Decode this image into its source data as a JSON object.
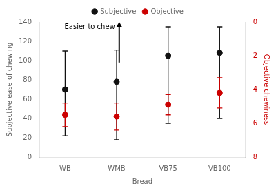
{
  "chart_data": {
    "type": "scatter",
    "categories": [
      "WB",
      "WMB",
      "VB75",
      "VB100"
    ],
    "xlabel": "Bread",
    "ylabel": "Subjective ease of chewing",
    "y2label": "Objective chewiness",
    "ylim": [
      0,
      140
    ],
    "yticks": [
      0,
      20,
      40,
      60,
      80,
      100,
      120,
      140
    ],
    "y2lim": [
      8,
      0
    ],
    "y2ticks": [
      0,
      2,
      4,
      6,
      8
    ],
    "grid": false,
    "legend": "top",
    "series": [
      {
        "name": "Subjective",
        "color": "#111111",
        "marker": "circle",
        "axis": "y",
        "values": [
          70,
          78,
          105,
          108
        ],
        "error_lower": [
          48,
          60,
          70,
          68
        ],
        "error_upper": [
          40,
          33,
          30,
          27
        ]
      },
      {
        "name": "Objective",
        "color": "#cc0000",
        "marker": "circle",
        "axis": "y2",
        "values": [
          5.5,
          5.6,
          4.9,
          4.2
        ],
        "error_lower": [
          0.7,
          0.8,
          0.6,
          0.9
        ],
        "error_upper": [
          0.7,
          0.8,
          0.6,
          0.9
        ]
      }
    ],
    "annotations": [
      {
        "text": "Easier to chew",
        "arrow_x": 1.05,
        "arrow_from": 98,
        "arrow_to": 140
      }
    ]
  }
}
